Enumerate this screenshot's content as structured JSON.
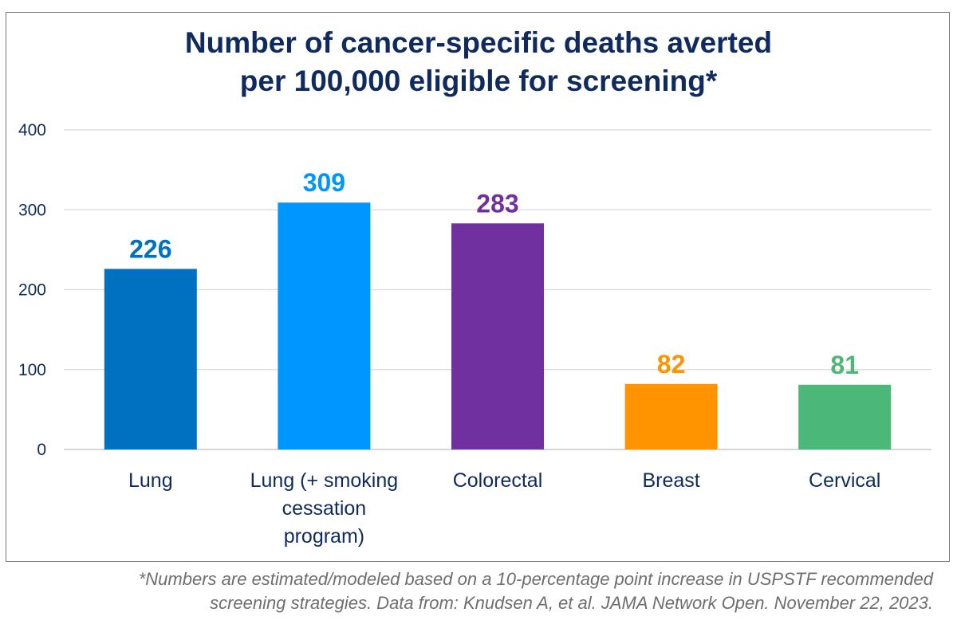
{
  "chart_data": {
    "type": "bar",
    "title": [
      "Number of cancer-specific deaths averted",
      "per 100,000 eligible for screening*"
    ],
    "categories": [
      [
        "Lung"
      ],
      [
        "Lung (+ smoking",
        "cessation",
        "program)"
      ],
      [
        "Colorectal"
      ],
      [
        "Breast"
      ],
      [
        "Cervical"
      ]
    ],
    "values": [
      226,
      309,
      283,
      82,
      81
    ],
    "data_labels": [
      "226",
      "309",
      "283",
      "82",
      "81"
    ],
    "colors": [
      "#0070c0",
      "#0096ff",
      "#7030a0",
      "#ff9400",
      "#4cb878"
    ],
    "ylim": [
      0,
      400
    ],
    "yticks": [
      0,
      100,
      200,
      300,
      400
    ],
    "grid": true,
    "legend": "none"
  },
  "footnote": [
    "*Numbers are estimated/modeled based on a 10-percentage point increase in USPSTF recommended",
    "screening strategies. Data from: Knudsen A, et al. JAMA Network Open. November 22, 2023."
  ]
}
